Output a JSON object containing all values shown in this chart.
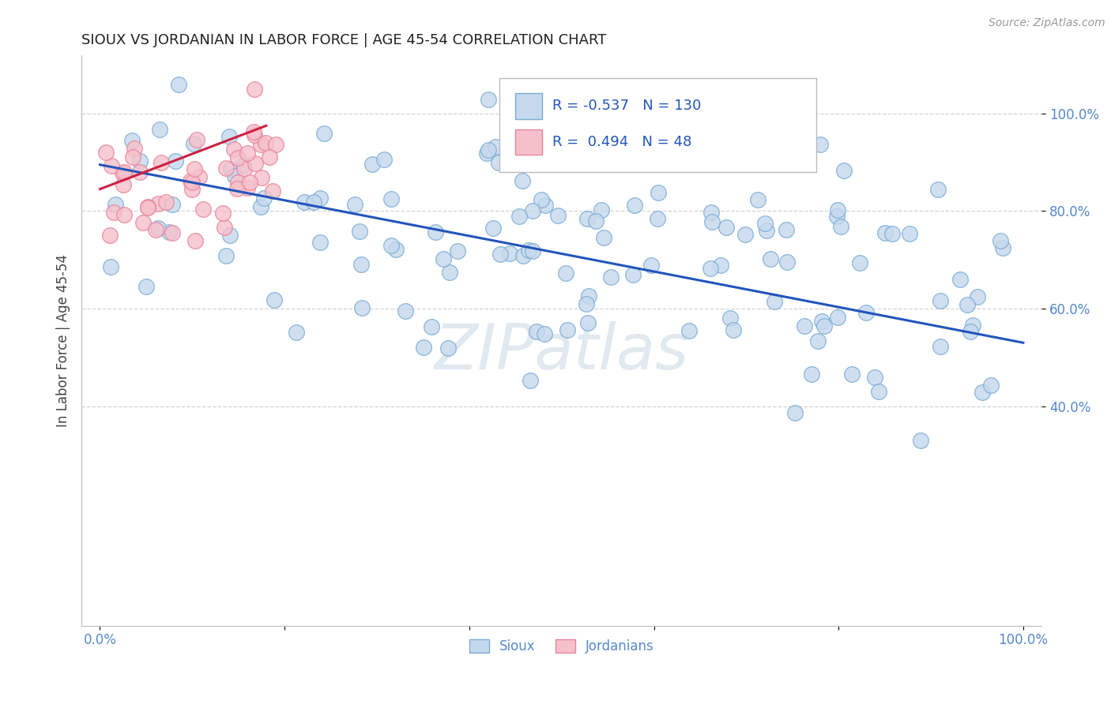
{
  "title": "SIOUX VS JORDANIAN IN LABOR FORCE | AGE 45-54 CORRELATION CHART",
  "source_text": "Source: ZipAtlas.com",
  "ylabel": "In Labor Force | Age 45-54",
  "watermark": "ZIPatlas",
  "xlim": [
    -0.02,
    1.02
  ],
  "ylim": [
    -0.05,
    1.12
  ],
  "xtick_labels": [
    "0.0%",
    "",
    "",
    "",
    "",
    "100.0%"
  ],
  "xtick_vals": [
    0.0,
    0.2,
    0.4,
    0.6,
    0.8,
    1.0
  ],
  "ytick_labels": [
    "40.0%",
    "60.0%",
    "80.0%",
    "100.0%"
  ],
  "ytick_vals": [
    0.4,
    0.6,
    0.8,
    1.0
  ],
  "sioux_color": "#c5d8ed",
  "sioux_edge_color": "#7badd4",
  "jordanian_color": "#f5c0ca",
  "jordanian_edge_color": "#e8849a",
  "blue_line_color": "#2255bb",
  "pink_line_color": "#cc2244",
  "R_sioux": -0.537,
  "N_sioux": 130,
  "R_jordanian": 0.494,
  "N_jordanian": 48,
  "bg_color": "#ffffff",
  "grid_color": "#c8c8c8",
  "title_color": "#222222",
  "axis_label_color": "#444444",
  "tick_label_color": "#5588cc",
  "legend_text_color": "#2255bb",
  "blue_line_y0": 0.895,
  "blue_line_y1": 0.53,
  "pink_line_x0": 0.0,
  "pink_line_x1": 0.18,
  "pink_line_y0": 0.845,
  "pink_line_y1": 0.975
}
